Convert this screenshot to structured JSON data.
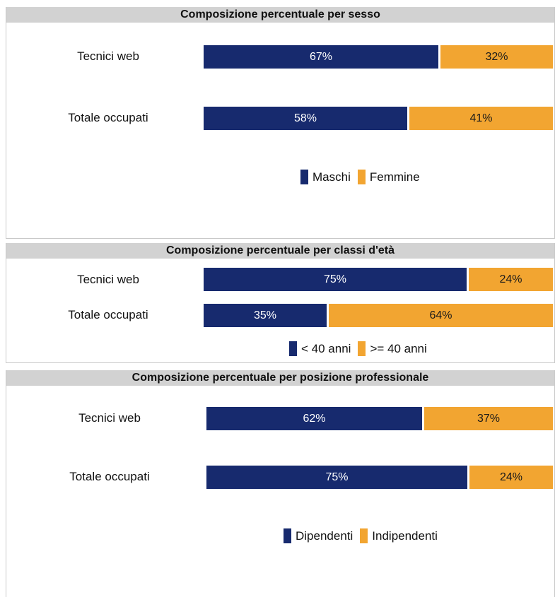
{
  "colors": {
    "series_a": "#172a6e",
    "series_b": "#f2a531"
  },
  "chart_data": [
    {
      "type": "bar",
      "orientation": "horizontal",
      "stacked": true,
      "title": "Composizione percentuale per sesso",
      "categories": [
        "Tecnici web",
        "Totale occupati"
      ],
      "series": [
        {
          "name": "Maschi",
          "values": [
            67,
            58
          ],
          "labels": [
            "67%",
            "58%"
          ]
        },
        {
          "name": "Femmine",
          "values": [
            32,
            41
          ],
          "labels": [
            "32%",
            "41%"
          ]
        }
      ],
      "legend_position": "bottom"
    },
    {
      "type": "bar",
      "orientation": "horizontal",
      "stacked": true,
      "title": "Composizione percentuale per classi d'età",
      "categories": [
        "Tecnici web",
        "Totale occupati"
      ],
      "series": [
        {
          "name": "< 40 anni",
          "values": [
            75,
            35
          ],
          "labels": [
            "75%",
            "35%"
          ]
        },
        {
          "name": ">= 40 anni",
          "values": [
            24,
            64
          ],
          "labels": [
            "24%",
            "64%"
          ]
        }
      ],
      "legend_position": "bottom"
    },
    {
      "type": "bar",
      "orientation": "horizontal",
      "stacked": true,
      "title": "Composizione percentuale per posizione professionale",
      "categories": [
        "Tecnici web",
        "Totale occupati"
      ],
      "series": [
        {
          "name": "Dipendenti",
          "values": [
            62,
            75
          ],
          "labels": [
            "62%",
            "75%"
          ]
        },
        {
          "name": "Indipendenti",
          "values": [
            37,
            24
          ],
          "labels": [
            "37%",
            "24%"
          ]
        }
      ],
      "legend_position": "bottom"
    }
  ]
}
